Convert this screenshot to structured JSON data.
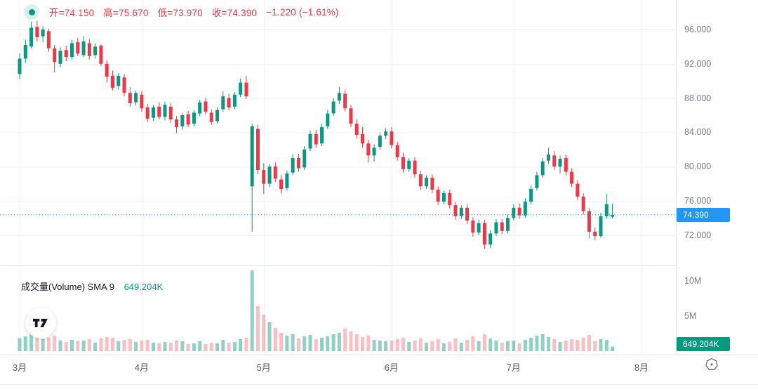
{
  "legend": {
    "open": "开=74.150",
    "high": "高=75.670",
    "low": "低=73.970",
    "close": "收=74.390",
    "change": "−1.220 (−1.61%)"
  },
  "volume_legend": {
    "title": "成交量(Volume) SMA 9",
    "value": "649.204K"
  },
  "price_axis": {
    "ticks": [
      {
        "label": "96.000",
        "p": 96
      },
      {
        "label": "92.000",
        "p": 92
      },
      {
        "label": "88.000",
        "p": 88
      },
      {
        "label": "84.000",
        "p": 84
      },
      {
        "label": "80.000",
        "p": 80
      },
      {
        "label": "76.000",
        "p": 76
      },
      {
        "label": "72.000",
        "p": 72
      }
    ],
    "last_price": {
      "label": "74.390",
      "price": 74.39
    }
  },
  "volume_axis": {
    "ticks": [
      {
        "label": "10M",
        "vK": 10000
      },
      {
        "label": "5M",
        "vK": 5000
      }
    ],
    "badge": {
      "label": "649.204K",
      "vK": 649.204
    }
  },
  "colors": {
    "up": "#089981",
    "down": "#f23645",
    "vol_up": "rgba(8,153,129,0.45)",
    "vol_down": "rgba(242,54,69,0.32)",
    "last_price": "#2196f3",
    "legend_text": "#f23645",
    "volume_value": "#089981",
    "grid": "#eef1f6",
    "separator": "#e0e3eb",
    "axis_text": "#787b86"
  },
  "chart_data": {
    "type": "candlestick",
    "title": "",
    "x_axis": {
      "unit": "trading days, March–July",
      "tick_labels": [
        "3月",
        "4月",
        "5月",
        "6月",
        "7月",
        "8月"
      ],
      "tick_candle_indices": [
        0,
        21,
        42,
        64,
        85,
        107
      ]
    },
    "price_axis_range": [
      68.47,
      99.44
    ],
    "price_tick_step": 4,
    "volume_axis_range_K": [
      0,
      12000
    ],
    "prev_close": 75.61,
    "last_close": 74.39,
    "candles_format": [
      "open",
      "high",
      "low",
      "close",
      "volume_K"
    ],
    "candles": [
      [
        90.8,
        93.2,
        90.2,
        92.6,
        1800
      ],
      [
        92.6,
        94.8,
        92.1,
        94.2,
        2100
      ],
      [
        94.0,
        96.9,
        93.8,
        96.2,
        2600
      ],
      [
        96.3,
        97.0,
        94.6,
        95.1,
        2400
      ],
      [
        95.2,
        96.4,
        94.5,
        96.0,
        1700
      ],
      [
        95.8,
        96.1,
        93.4,
        93.8,
        1900
      ],
      [
        93.8,
        94.2,
        91.0,
        92.2,
        2200
      ],
      [
        92.0,
        93.9,
        91.6,
        93.5,
        1500
      ],
      [
        93.6,
        94.1,
        92.3,
        92.8,
        1300
      ],
      [
        92.8,
        94.8,
        92.5,
        94.4,
        1600
      ],
      [
        94.5,
        95.0,
        92.9,
        93.2,
        1400
      ],
      [
        93.0,
        95.2,
        92.8,
        94.6,
        1500
      ],
      [
        94.4,
        94.9,
        92.5,
        92.9,
        1700
      ],
      [
        93.0,
        94.4,
        92.6,
        94.0,
        1200
      ],
      [
        94.1,
        94.3,
        91.7,
        92.0,
        1800
      ],
      [
        92.0,
        92.4,
        89.8,
        90.5,
        2000
      ],
      [
        90.6,
        91.2,
        88.9,
        89.2,
        1900
      ],
      [
        89.4,
        90.9,
        89.0,
        90.6,
        1400
      ],
      [
        90.4,
        90.8,
        88.2,
        88.6,
        1600
      ],
      [
        88.6,
        89.3,
        87.0,
        87.4,
        1700
      ],
      [
        87.5,
        88.9,
        87.1,
        88.6,
        1300
      ],
      [
        88.4,
        88.8,
        86.4,
        86.8,
        1500
      ],
      [
        86.9,
        87.3,
        85.2,
        85.6,
        1600
      ],
      [
        85.7,
        87.2,
        85.3,
        86.9,
        1200
      ],
      [
        87.0,
        87.5,
        85.5,
        85.8,
        1100
      ],
      [
        85.8,
        87.6,
        85.4,
        87.2,
        1300
      ],
      [
        87.0,
        87.4,
        85.1,
        85.5,
        1200
      ],
      [
        85.5,
        85.9,
        83.9,
        84.6,
        1500
      ],
      [
        84.7,
        86.3,
        84.3,
        86.0,
        1400
      ],
      [
        86.1,
        86.5,
        84.6,
        84.9,
        1000
      ],
      [
        85.0,
        86.6,
        84.7,
        86.3,
        1100
      ],
      [
        86.2,
        87.8,
        85.9,
        87.5,
        1400
      ],
      [
        87.6,
        88.0,
        86.1,
        86.4,
        1000
      ],
      [
        86.3,
        86.7,
        84.9,
        85.2,
        1200
      ],
      [
        85.3,
        86.9,
        85.0,
        86.6,
        1100
      ],
      [
        86.7,
        88.8,
        86.4,
        88.2,
        1600
      ],
      [
        88.0,
        88.5,
        86.6,
        86.9,
        1200
      ],
      [
        87.0,
        88.7,
        86.7,
        88.4,
        1300
      ],
      [
        88.4,
        90.3,
        88.1,
        89.8,
        1700
      ],
      [
        89.8,
        90.6,
        87.9,
        88.2,
        1900
      ],
      [
        77.7,
        85.0,
        72.4,
        84.7,
        11500
      ],
      [
        84.4,
        84.9,
        79.1,
        79.6,
        6400
      ],
      [
        79.6,
        80.4,
        76.8,
        78.0,
        5200
      ],
      [
        78.0,
        80.3,
        77.6,
        80.0,
        4100
      ],
      [
        80.0,
        80.5,
        78.2,
        78.6,
        3300
      ],
      [
        78.5,
        79.0,
        76.9,
        77.4,
        2600
      ],
      [
        77.5,
        79.5,
        77.2,
        79.2,
        2200
      ],
      [
        79.3,
        81.4,
        79.0,
        81.0,
        2400
      ],
      [
        81.0,
        81.5,
        79.4,
        79.8,
        1800
      ],
      [
        79.9,
        82.4,
        79.6,
        82.0,
        2100
      ],
      [
        82.1,
        84.2,
        81.8,
        83.8,
        2300
      ],
      [
        83.8,
        84.3,
        82.2,
        82.6,
        1700
      ],
      [
        82.7,
        85.0,
        82.4,
        84.6,
        1900
      ],
      [
        84.7,
        86.6,
        84.4,
        86.2,
        2100
      ],
      [
        86.2,
        88.0,
        85.9,
        87.6,
        2400
      ],
      [
        87.7,
        89.3,
        87.3,
        88.6,
        2600
      ],
      [
        88.5,
        89.0,
        86.4,
        86.8,
        3200
      ],
      [
        86.8,
        87.2,
        84.6,
        85.0,
        2800
      ],
      [
        85.0,
        85.5,
        83.3,
        83.7,
        2400
      ],
      [
        83.8,
        84.6,
        82.2,
        82.7,
        2000
      ],
      [
        82.7,
        83.1,
        80.5,
        81.3,
        2200
      ],
      [
        81.3,
        82.6,
        80.6,
        82.2,
        1600
      ],
      [
        82.3,
        84.0,
        82.0,
        83.6,
        1500
      ],
      [
        83.6,
        84.5,
        83.2,
        84.1,
        1400
      ],
      [
        84.1,
        84.6,
        82.1,
        82.5,
        1500
      ],
      [
        82.5,
        82.9,
        80.7,
        81.1,
        1700
      ],
      [
        81.1,
        81.6,
        79.3,
        79.7,
        1900
      ],
      [
        79.7,
        81.0,
        79.4,
        80.7,
        1300
      ],
      [
        80.7,
        81.1,
        78.7,
        79.1,
        1500
      ],
      [
        79.1,
        79.5,
        77.3,
        77.7,
        1800
      ],
      [
        77.7,
        79.0,
        77.4,
        78.7,
        1200
      ],
      [
        78.7,
        79.1,
        76.9,
        77.3,
        1400
      ],
      [
        77.3,
        77.7,
        75.5,
        75.9,
        1700
      ],
      [
        75.9,
        77.2,
        75.6,
        76.9,
        1100
      ],
      [
        76.9,
        77.3,
        75.1,
        75.5,
        1300
      ],
      [
        75.5,
        75.9,
        73.8,
        74.2,
        1800
      ],
      [
        74.2,
        75.5,
        73.9,
        75.2,
        1200
      ],
      [
        75.2,
        75.6,
        73.3,
        73.7,
        1600
      ],
      [
        73.7,
        74.1,
        71.8,
        72.3,
        2100
      ],
      [
        72.3,
        73.8,
        72.0,
        73.4,
        1400
      ],
      [
        73.4,
        73.8,
        70.4,
        70.9,
        2400
      ],
      [
        70.9,
        72.6,
        70.5,
        72.2,
        1800
      ],
      [
        72.2,
        73.9,
        71.9,
        73.5,
        1500
      ],
      [
        73.5,
        73.9,
        72.1,
        72.5,
        1200
      ],
      [
        72.5,
        74.4,
        72.2,
        74.0,
        1400
      ],
      [
        74.0,
        75.6,
        73.7,
        75.2,
        1500
      ],
      [
        75.2,
        75.7,
        73.9,
        74.3,
        1100
      ],
      [
        74.3,
        76.3,
        74.0,
        75.9,
        1600
      ],
      [
        75.9,
        77.8,
        75.6,
        77.4,
        1900
      ],
      [
        77.5,
        79.4,
        77.2,
        79.0,
        2200
      ],
      [
        79.0,
        81.0,
        78.7,
        80.6,
        2400
      ],
      [
        80.7,
        82.2,
        80.3,
        81.4,
        2000
      ],
      [
        81.3,
        81.8,
        79.6,
        80.0,
        1700
      ],
      [
        80.0,
        81.3,
        79.2,
        80.9,
        1300
      ],
      [
        81.0,
        81.4,
        79.0,
        79.4,
        1500
      ],
      [
        79.4,
        79.8,
        77.6,
        78.0,
        1700
      ],
      [
        78.0,
        78.4,
        76.1,
        76.5,
        1600
      ],
      [
        76.5,
        76.9,
        74.4,
        74.8,
        1900
      ],
      [
        74.8,
        75.2,
        71.6,
        72.4,
        2300
      ],
      [
        72.4,
        72.9,
        71.4,
        71.9,
        1400
      ],
      [
        71.9,
        74.6,
        71.7,
        74.2,
        1700
      ],
      [
        74.2,
        76.8,
        73.9,
        75.61,
        1600
      ],
      [
        74.15,
        75.67,
        73.97,
        74.39,
        649.204
      ]
    ]
  }
}
